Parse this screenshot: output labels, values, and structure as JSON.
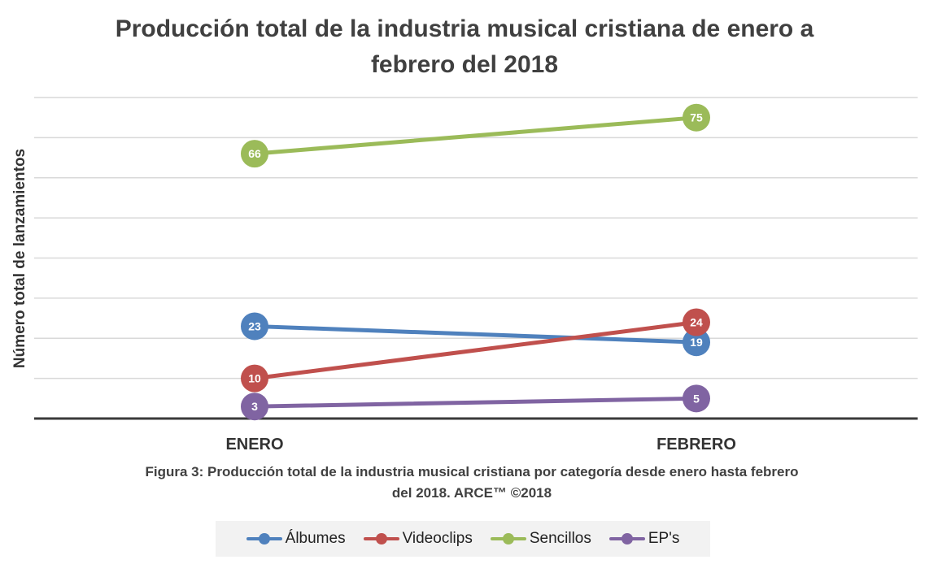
{
  "chart_data": {
    "type": "line",
    "title_lines": [
      "Producción total de la industria musical cristiana de enero a",
      "febrero del 2018"
    ],
    "ylabel": "Número total de lanzamientos",
    "xlabel": "",
    "categories": [
      "ENERO",
      "FEBRERO"
    ],
    "ylim": [
      0,
      80
    ],
    "ytick_step": 10,
    "grid": true,
    "series": [
      {
        "name": "Álbumes",
        "color": "#4f81bd",
        "values": [
          23,
          19
        ]
      },
      {
        "name": "Videoclips",
        "color": "#c0504d",
        "values": [
          10,
          24
        ]
      },
      {
        "name": "Sencillos",
        "color": "#9bbb59",
        "values": [
          66,
          75
        ]
      },
      {
        "name": "EP's",
        "color": "#8064a2",
        "values": [
          3,
          5
        ]
      }
    ],
    "caption_lines": [
      "Figura 3: Producción total de la industria musical cristiana por categoría desde enero hasta febrero",
      "del 2018.  ARCE™ ©2018"
    ],
    "legend_position": "bottom"
  }
}
